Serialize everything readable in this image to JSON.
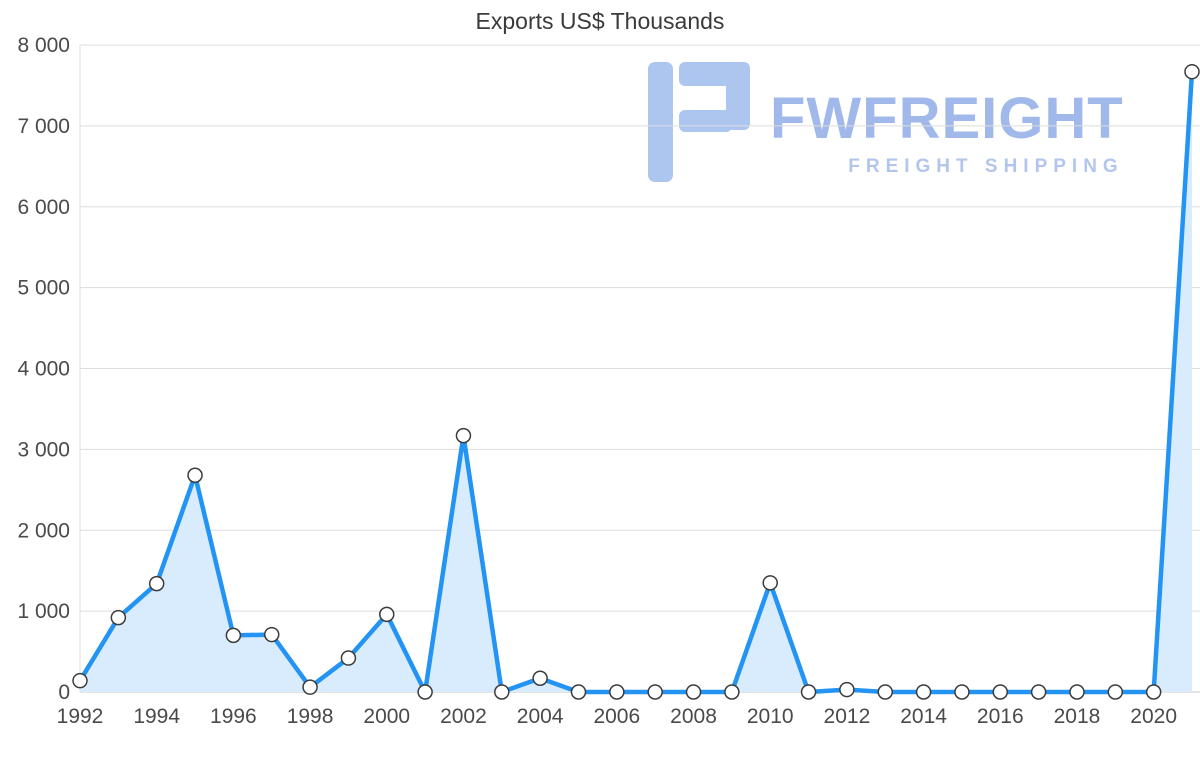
{
  "title": "Exports US$ Thousands",
  "watermark": {
    "name": "FWFREIGHT",
    "subtitle": "FREIGHT SHIPPING"
  },
  "chart_data": {
    "type": "area",
    "title": "Exports US$ Thousands",
    "xlabel": "",
    "ylabel": "",
    "x": [
      1992,
      1993,
      1994,
      1995,
      1996,
      1997,
      1998,
      1999,
      2000,
      2001,
      2002,
      2003,
      2004,
      2005,
      2006,
      2007,
      2008,
      2009,
      2010,
      2011,
      2012,
      2013,
      2014,
      2015,
      2016,
      2017,
      2018,
      2019,
      2020,
      2021
    ],
    "values": [
      140,
      920,
      1340,
      2680,
      700,
      710,
      60,
      420,
      960,
      0,
      3170,
      0,
      170,
      0,
      0,
      0,
      0,
      0,
      1350,
      0,
      30,
      0,
      0,
      0,
      0,
      0,
      0,
      0,
      0,
      7670
    ],
    "ylim": [
      0,
      8000
    ],
    "y_tick_step": 1000,
    "y_tick_labels": [
      "0",
      "1 000",
      "2 000",
      "3 000",
      "4 000",
      "5 000",
      "6 000",
      "7 000",
      "8 000"
    ],
    "x_tick_labels": [
      "1992",
      "1994",
      "1996",
      "1998",
      "2000",
      "2002",
      "2004",
      "2006",
      "2008",
      "2010",
      "2012",
      "2014",
      "2016",
      "2018",
      "2020"
    ],
    "grid": "horizontal",
    "legend": "none",
    "colors": {
      "line": "#2394f3",
      "fill": "#d9ecfd",
      "marker_fill": "#ffffff",
      "marker_stroke": "#3b3b3b",
      "grid": "#dddddd",
      "zero_line": "#c8c8c8",
      "axis_text": "#4a4a4a",
      "watermark": "#a9c3f0"
    }
  }
}
